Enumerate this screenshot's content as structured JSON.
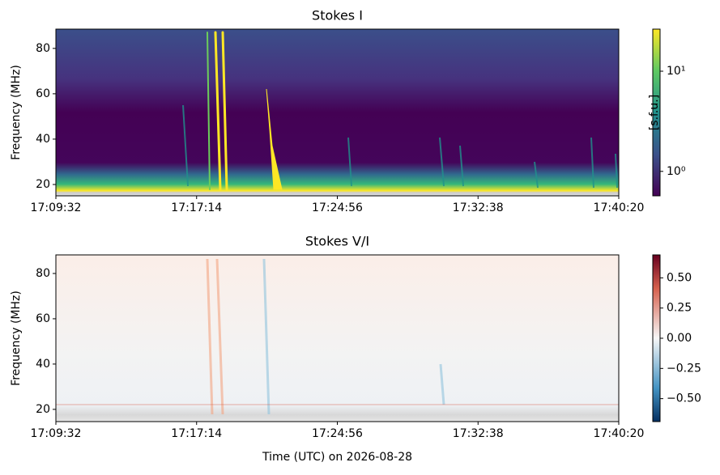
{
  "chart_data": [
    {
      "type": "heatmap",
      "title": "Stokes I",
      "ylabel": "Frequency (MHz)",
      "xticks": [
        "17:09:32",
        "17:17:14",
        "17:24:56",
        "17:32:38",
        "17:40:20"
      ],
      "ylim": [
        15,
        88.5
      ],
      "yticks": [
        20,
        40,
        60,
        80
      ],
      "clim": [
        0.57,
        26.3
      ],
      "clog": true,
      "cticks": [
        {
          "value": 1,
          "label": "10⁰"
        },
        {
          "value": 10,
          "label": "10¹"
        }
      ],
      "clabel": "[s.f.u.]",
      "colormap": "viridis"
    },
    {
      "type": "heatmap",
      "title": "Stokes V/I",
      "ylabel": "Frequency (MHz)",
      "xlabel": "Time (UTC) on 2026-08-28",
      "xticks": [
        "17:09:32",
        "17:17:14",
        "17:24:56",
        "17:32:38",
        "17:40:20"
      ],
      "ylim": [
        14.6,
        88.2
      ],
      "yticks": [
        20,
        40,
        60,
        80
      ],
      "clim": [
        -0.69,
        0.69
      ],
      "clog": false,
      "cticks": [
        {
          "value": 0.5,
          "label": "0.50"
        },
        {
          "value": 0.25,
          "label": "0.25"
        },
        {
          "value": 0,
          "label": "0.00"
        },
        {
          "value": -0.25,
          "label": "−0.25"
        },
        {
          "value": -0.5,
          "label": "−0.50"
        }
      ],
      "colormap": "RdBu_r"
    }
  ]
}
